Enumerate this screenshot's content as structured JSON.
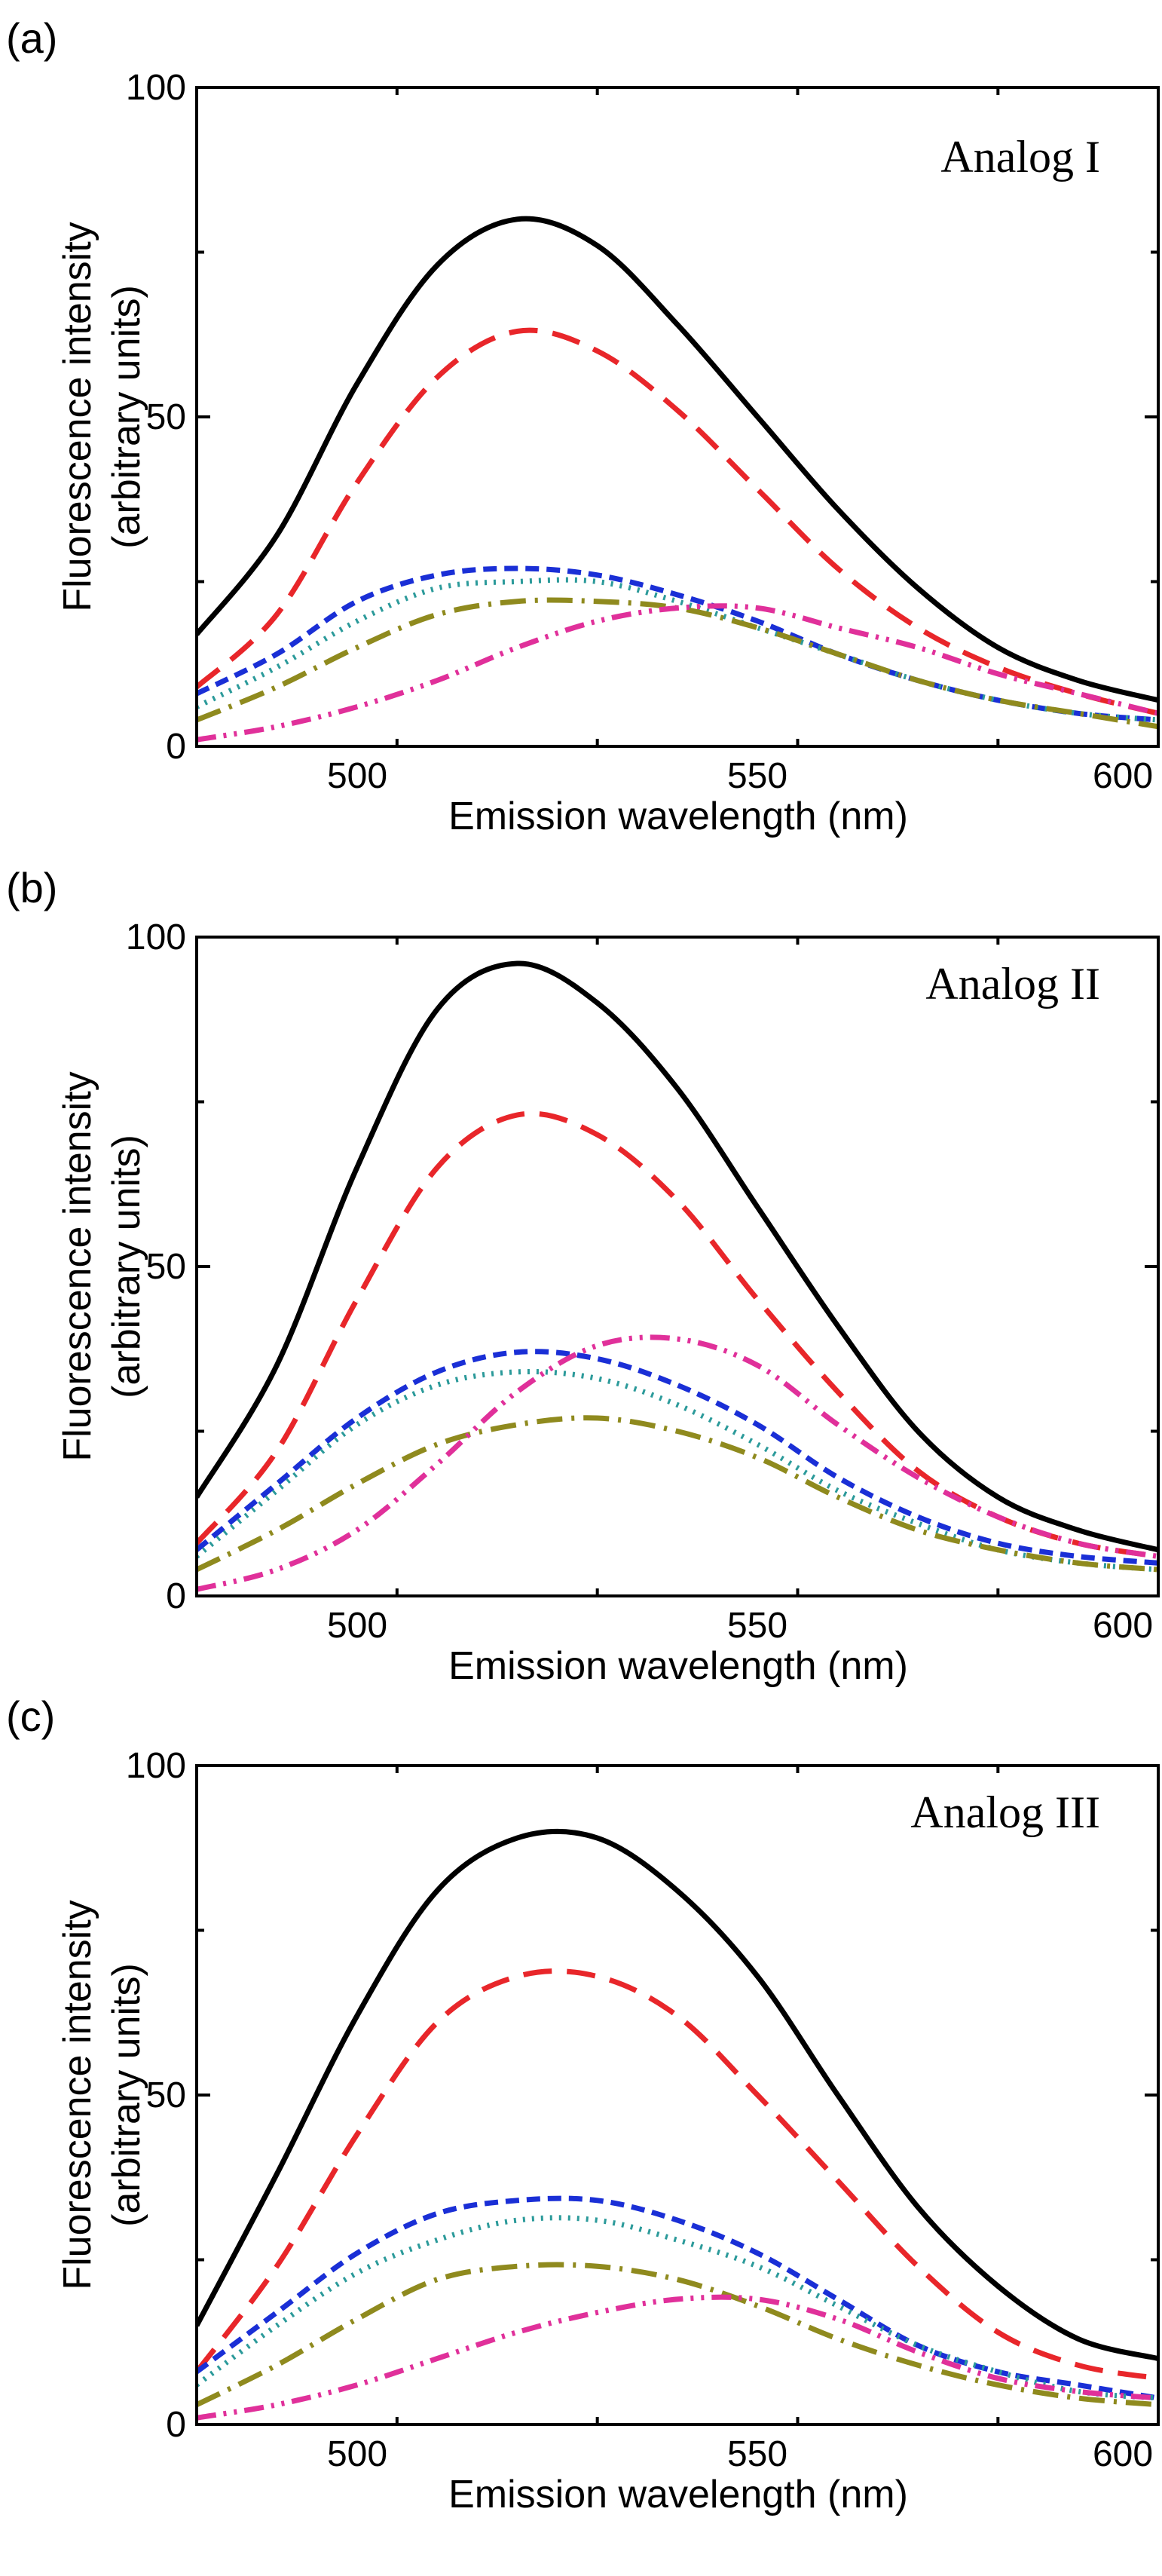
{
  "chart_data": [
    {
      "type": "line",
      "panel_label": "(a)",
      "title": "Analog I",
      "xlabel": "Emission wavelength (nm)",
      "ylabel": [
        "Fluorescence intensity",
        "(arbitrary units)"
      ],
      "xlim": [
        480,
        600
      ],
      "ylim": [
        0,
        100
      ],
      "xticks": [
        500,
        550,
        600
      ],
      "yticks": [
        0,
        50,
        100
      ],
      "series": [
        {
          "name": "black-solid",
          "color": "#000000",
          "style": "solid",
          "x": [
            480,
            490,
            500,
            510,
            520,
            530,
            540,
            550,
            560,
            570,
            580,
            590,
            600
          ],
          "y": [
            17,
            32,
            55,
            73,
            80,
            76,
            64,
            50,
            36,
            24,
            15,
            10,
            7
          ]
        },
        {
          "name": "red-dash",
          "color": "#e8262a",
          "style": "dash",
          "x": [
            480,
            490,
            500,
            510,
            520,
            530,
            540,
            550,
            560,
            570,
            580,
            590,
            600
          ],
          "y": [
            9,
            20,
            40,
            56,
            63,
            60,
            51,
            39,
            27,
            18,
            12,
            8,
            5
          ]
        },
        {
          "name": "blue-short-dash",
          "color": "#1a2fd6",
          "style": "shortdash",
          "x": [
            480,
            490,
            500,
            510,
            520,
            530,
            540,
            550,
            560,
            570,
            580,
            590,
            600
          ],
          "y": [
            8,
            14,
            22,
            26,
            27,
            26,
            23,
            19,
            14,
            10,
            7,
            5,
            4
          ]
        },
        {
          "name": "teal-dot",
          "color": "#2b9a9a",
          "style": "dot",
          "x": [
            480,
            490,
            500,
            510,
            520,
            530,
            540,
            550,
            560,
            570,
            580,
            590,
            600
          ],
          "y": [
            6,
            12,
            19,
            24,
            25,
            25,
            22,
            18,
            14,
            10,
            7,
            5,
            4
          ]
        },
        {
          "name": "olive-dashdot",
          "color": "#8f8a1e",
          "style": "dashdot",
          "x": [
            480,
            490,
            500,
            510,
            520,
            530,
            540,
            550,
            560,
            570,
            580,
            590,
            600
          ],
          "y": [
            4,
            9,
            15,
            20,
            22,
            22,
            21,
            18,
            14,
            10,
            7,
            5,
            3
          ]
        },
        {
          "name": "magenta-dashdotdot",
          "color": "#e0309a",
          "style": "dashdotdot",
          "x": [
            480,
            490,
            500,
            510,
            520,
            530,
            540,
            550,
            560,
            570,
            580,
            590,
            600
          ],
          "y": [
            1,
            3,
            6,
            10,
            15,
            19,
            21,
            21,
            18,
            15,
            11,
            8,
            5
          ]
        }
      ]
    },
    {
      "type": "line",
      "panel_label": "(b)",
      "title": "Analog II",
      "xlabel": "Emission wavelength (nm)",
      "ylabel": [
        "Fluorescence intensity",
        "(arbitrary units)"
      ],
      "xlim": [
        480,
        600
      ],
      "ylim": [
        0,
        100
      ],
      "xticks": [
        500,
        550,
        600
      ],
      "yticks": [
        0,
        50,
        100
      ],
      "series": [
        {
          "name": "black-solid",
          "color": "#000000",
          "style": "solid",
          "x": [
            480,
            490,
            500,
            510,
            520,
            530,
            540,
            550,
            560,
            570,
            580,
            590,
            600
          ],
          "y": [
            15,
            35,
            65,
            89,
            96,
            90,
            77,
            59,
            41,
            25,
            15,
            10,
            7
          ]
        },
        {
          "name": "red-dash",
          "color": "#e8262a",
          "style": "dash",
          "x": [
            480,
            490,
            500,
            510,
            520,
            530,
            540,
            550,
            560,
            570,
            580,
            590,
            600
          ],
          "y": [
            8,
            22,
            45,
            65,
            73,
            70,
            60,
            45,
            31,
            19,
            12,
            8,
            6
          ]
        },
        {
          "name": "blue-short-dash",
          "color": "#1a2fd6",
          "style": "shortdash",
          "x": [
            480,
            490,
            500,
            510,
            520,
            530,
            540,
            550,
            560,
            570,
            580,
            590,
            600
          ],
          "y": [
            7,
            17,
            27,
            34,
            37,
            36,
            32,
            26,
            18,
            12,
            8,
            6,
            5
          ]
        },
        {
          "name": "teal-dot",
          "color": "#2b9a9a",
          "style": "dot",
          "x": [
            480,
            490,
            500,
            510,
            520,
            530,
            540,
            550,
            560,
            570,
            580,
            590,
            600
          ],
          "y": [
            6,
            16,
            26,
            32,
            34,
            33,
            29,
            23,
            16,
            11,
            7,
            5,
            4
          ]
        },
        {
          "name": "olive-dashdot",
          "color": "#8f8a1e",
          "style": "dashdot",
          "x": [
            480,
            490,
            500,
            510,
            520,
            530,
            540,
            550,
            560,
            570,
            580,
            590,
            600
          ],
          "y": [
            4,
            10,
            17,
            23,
            26,
            27,
            25,
            21,
            15,
            10,
            7,
            5,
            4
          ]
        },
        {
          "name": "magenta-dashdotdot",
          "color": "#e0309a",
          "style": "dashdotdot",
          "x": [
            480,
            490,
            500,
            510,
            520,
            530,
            540,
            550,
            560,
            570,
            580,
            590,
            600
          ],
          "y": [
            1,
            4,
            10,
            20,
            31,
            38,
            39,
            35,
            26,
            18,
            12,
            8,
            6
          ]
        }
      ]
    },
    {
      "type": "line",
      "panel_label": "(c)",
      "title": "Analog III",
      "xlabel": "Emission wavelength (nm)",
      "ylabel": [
        "Fluorescence intensity",
        "(arbitrary units)"
      ],
      "xlim": [
        480,
        600
      ],
      "ylim": [
        0,
        100
      ],
      "xticks": [
        500,
        550,
        600
      ],
      "yticks": [
        0,
        50,
        100
      ],
      "series": [
        {
          "name": "black-solid",
          "color": "#000000",
          "style": "solid",
          "x": [
            480,
            490,
            500,
            510,
            520,
            530,
            540,
            550,
            560,
            570,
            580,
            590,
            600
          ],
          "y": [
            15,
            38,
            62,
            81,
            89,
            89,
            81,
            68,
            50,
            33,
            21,
            13,
            10
          ]
        },
        {
          "name": "red-dash",
          "color": "#e8262a",
          "style": "dash",
          "x": [
            480,
            490,
            500,
            510,
            520,
            530,
            540,
            550,
            560,
            570,
            580,
            590,
            600
          ],
          "y": [
            8,
            24,
            44,
            61,
            68,
            68,
            62,
            50,
            37,
            24,
            14,
            9,
            7
          ]
        },
        {
          "name": "blue-short-dash",
          "color": "#1a2fd6",
          "style": "shortdash",
          "x": [
            480,
            490,
            500,
            510,
            520,
            530,
            540,
            550,
            560,
            570,
            580,
            590,
            600
          ],
          "y": [
            8,
            17,
            26,
            32,
            34,
            34,
            31,
            26,
            19,
            12,
            8,
            6,
            4
          ]
        },
        {
          "name": "teal-dot",
          "color": "#2b9a9a",
          "style": "dot",
          "x": [
            480,
            490,
            500,
            510,
            520,
            530,
            540,
            550,
            560,
            570,
            580,
            590,
            600
          ],
          "y": [
            6,
            15,
            23,
            28,
            31,
            31,
            28,
            24,
            18,
            12,
            8,
            5,
            4
          ]
        },
        {
          "name": "olive-dashdot",
          "color": "#8f8a1e",
          "style": "dashdot",
          "x": [
            480,
            490,
            500,
            510,
            520,
            530,
            540,
            550,
            560,
            570,
            580,
            590,
            600
          ],
          "y": [
            3,
            9,
            16,
            22,
            24,
            24,
            22,
            18,
            13,
            9,
            6,
            4,
            3
          ]
        },
        {
          "name": "magenta-dashdotdot",
          "color": "#e0309a",
          "style": "dashdotdot",
          "x": [
            480,
            490,
            500,
            510,
            520,
            530,
            540,
            550,
            560,
            570,
            580,
            590,
            600
          ],
          "y": [
            1,
            3,
            6,
            10,
            14,
            17,
            19,
            19,
            16,
            11,
            7,
            5,
            4
          ]
        }
      ]
    }
  ]
}
